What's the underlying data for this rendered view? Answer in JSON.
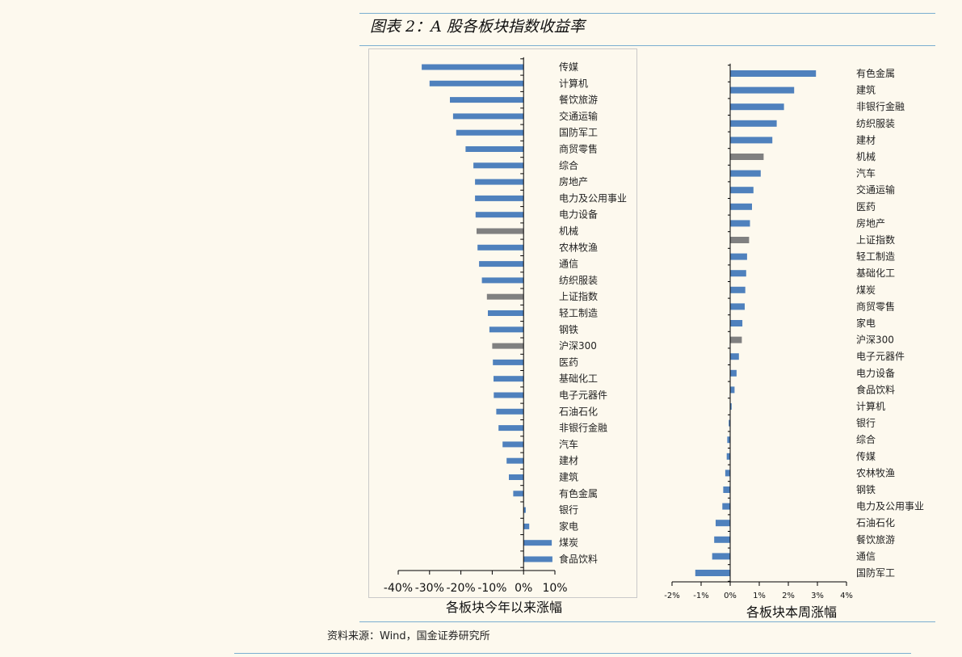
{
  "figure": {
    "title": "图表 2：A 股各板块指数收益率"
  },
  "source": "资料来源：Wind，国金证券研究所",
  "colors": {
    "bar": "#4f81bd",
    "highlight": "#808080",
    "rule": "#7aaed0"
  },
  "chart_data": [
    {
      "type": "bar",
      "orientation": "horizontal",
      "title": "",
      "xlabel": "各板块今年以来涨幅",
      "ylabel": "",
      "xlim": [
        -40,
        10
      ],
      "tick_values": [
        -40,
        -30,
        -20,
        -10,
        0,
        10
      ],
      "tick_labels": [
        "-40%",
        "-30%",
        "-20%",
        "-10%",
        "0%",
        "10%"
      ],
      "categories": [
        "传媒",
        "计算机",
        "餐饮旅游",
        "交通运输",
        "国防军工",
        "商贸零售",
        "综合",
        "房地产",
        "电力及公用事业",
        "电力设备",
        "机械",
        "农林牧渔",
        "通信",
        "纺织服装",
        "上证指数",
        "轻工制造",
        "钢铁",
        "沪深300",
        "医药",
        "基础化工",
        "电子元器件",
        "石油石化",
        "非银行金融",
        "汽车",
        "建材",
        "建筑",
        "有色金属",
        "银行",
        "家电",
        "煤炭",
        "食品饮料"
      ],
      "values": [
        -32.5,
        -30.0,
        -23.5,
        -22.5,
        -21.5,
        -18.5,
        -16.0,
        -15.5,
        -15.5,
        -15.3,
        -15.0,
        -14.7,
        -14.2,
        -13.3,
        -11.7,
        -11.4,
        -10.9,
        -10.0,
        -9.8,
        -9.6,
        -9.5,
        -8.7,
        -8.0,
        -6.7,
        -5.4,
        -4.7,
        -3.3,
        0.7,
        1.8,
        9.0,
        9.2
      ],
      "highlight": [
        "机械",
        "上证指数",
        "沪深300"
      ]
    },
    {
      "type": "bar",
      "orientation": "horizontal",
      "title": "",
      "xlabel": "各板块本周涨幅",
      "ylabel": "",
      "xlim": [
        -2,
        4
      ],
      "tick_values": [
        -2,
        -1,
        0,
        1,
        2,
        3,
        4
      ],
      "tick_labels": [
        "-2%",
        "-1%",
        "0%",
        "1%",
        "2%",
        "3%",
        "4%"
      ],
      "categories": [
        "有色金属",
        "建筑",
        "非银行金融",
        "纺织服装",
        "建材",
        "机械",
        "汽车",
        "交通运输",
        "医药",
        "房地产",
        "上证指数",
        "轻工制造",
        "基础化工",
        "煤炭",
        "商贸零售",
        "家电",
        "沪深300",
        "电子元器件",
        "电力设备",
        "食品饮料",
        "计算机",
        "银行",
        "综合",
        "传媒",
        "农林牧渔",
        "钢铁",
        "电力及公用事业",
        "石油石化",
        "餐饮旅游",
        "通信",
        "国防军工"
      ],
      "values": [
        2.95,
        2.2,
        1.85,
        1.6,
        1.45,
        1.15,
        1.05,
        0.8,
        0.75,
        0.68,
        0.65,
        0.58,
        0.55,
        0.52,
        0.5,
        0.42,
        0.4,
        0.3,
        0.22,
        0.15,
        0.05,
        -0.05,
        -0.1,
        -0.12,
        -0.17,
        -0.24,
        -0.27,
        -0.5,
        -0.55,
        -0.62,
        -1.2
      ],
      "highlight": [
        "机械",
        "上证指数",
        "沪深300"
      ]
    }
  ]
}
